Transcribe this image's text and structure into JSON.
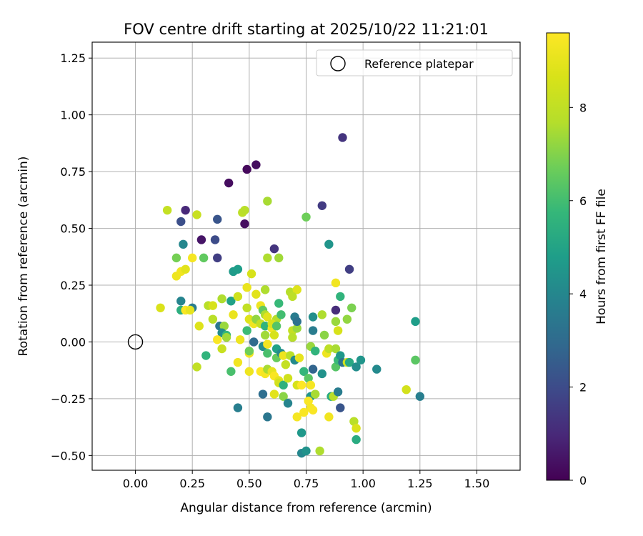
{
  "chart_data": {
    "type": "scatter",
    "title": "FOV centre drift starting at 2025/10/22 11:21:01",
    "xlabel": "Angular distance from reference (arcmin)",
    "ylabel": "Rotation from reference (arcmin)",
    "xlim": [
      -0.19,
      1.69
    ],
    "ylim": [
      -0.565,
      1.32
    ],
    "xticks": [
      0.0,
      0.25,
      0.5,
      0.75,
      1.0,
      1.25,
      1.5
    ],
    "xtick_labels": [
      "0.00",
      "0.25",
      "0.50",
      "0.75",
      "1.00",
      "1.25",
      "1.50"
    ],
    "yticks": [
      -0.5,
      -0.25,
      0.0,
      0.25,
      0.5,
      0.75,
      1.0,
      1.25
    ],
    "ytick_labels": [
      "−0.50",
      "−0.25",
      "0.00",
      "0.25",
      "0.50",
      "0.75",
      "1.00",
      "1.25"
    ],
    "grid": true,
    "legend": {
      "position": "top-right",
      "label": "Reference platepar"
    },
    "reference_point": {
      "x": 0.0,
      "y": 0.0
    },
    "colorbar": {
      "label": "Hours from first FF file",
      "colormap": "viridis",
      "range": [
        0,
        9.6
      ],
      "ticks": [
        0,
        2,
        4,
        6,
        8
      ],
      "tick_labels": [
        "0",
        "2",
        "4",
        "6",
        "8"
      ]
    },
    "points": [
      {
        "x": 0.91,
        "y": 0.9,
        "h": 1.3
      },
      {
        "x": 0.53,
        "y": 0.78,
        "h": 0.3
      },
      {
        "x": 0.49,
        "y": 0.76,
        "h": 0.2
      },
      {
        "x": 0.41,
        "y": 0.7,
        "h": 0.3
      },
      {
        "x": 0.82,
        "y": 0.6,
        "h": 1.5
      },
      {
        "x": 0.22,
        "y": 0.58,
        "h": 1.0
      },
      {
        "x": 0.36,
        "y": 0.54,
        "h": 2.3
      },
      {
        "x": 0.2,
        "y": 0.53,
        "h": 2.1
      },
      {
        "x": 0.48,
        "y": 0.52,
        "h": 0.3
      },
      {
        "x": 0.29,
        "y": 0.45,
        "h": 0.5
      },
      {
        "x": 0.35,
        "y": 0.45,
        "h": 2.0
      },
      {
        "x": 0.61,
        "y": 0.41,
        "h": 1.3
      },
      {
        "x": 0.36,
        "y": 0.37,
        "h": 1.6
      },
      {
        "x": 0.94,
        "y": 0.32,
        "h": 1.6
      },
      {
        "x": 0.88,
        "y": 0.14,
        "h": 1.1
      },
      {
        "x": 0.85,
        "y": 0.43,
        "h": 4.5
      },
      {
        "x": 0.21,
        "y": 0.43,
        "h": 4.0
      },
      {
        "x": 0.14,
        "y": 0.58,
        "h": 8.1
      },
      {
        "x": 0.27,
        "y": 0.56,
        "h": 8.2
      },
      {
        "x": 0.47,
        "y": 0.57,
        "h": 7.9
      },
      {
        "x": 0.48,
        "y": 0.58,
        "h": 7.8
      },
      {
        "x": 0.58,
        "y": 0.62,
        "h": 7.5
      },
      {
        "x": 0.75,
        "y": 0.55,
        "h": 6.7
      },
      {
        "x": 0.18,
        "y": 0.37,
        "h": 6.8
      },
      {
        "x": 0.3,
        "y": 0.37,
        "h": 6.5
      },
      {
        "x": 0.58,
        "y": 0.37,
        "h": 7.6
      },
      {
        "x": 0.63,
        "y": 0.37,
        "h": 7.4
      },
      {
        "x": 0.43,
        "y": 0.31,
        "h": 4.7
      },
      {
        "x": 0.45,
        "y": 0.32,
        "h": 4.8
      },
      {
        "x": 0.51,
        "y": 0.3,
        "h": 8.6
      },
      {
        "x": 0.18,
        "y": 0.29,
        "h": 9.2
      },
      {
        "x": 0.2,
        "y": 0.31,
        "h": 9.3
      },
      {
        "x": 0.22,
        "y": 0.32,
        "h": 8.9
      },
      {
        "x": 0.25,
        "y": 0.37,
        "h": 9.4
      },
      {
        "x": 0.57,
        "y": 0.23,
        "h": 7.6
      },
      {
        "x": 0.49,
        "y": 0.24,
        "h": 9.1
      },
      {
        "x": 0.53,
        "y": 0.21,
        "h": 8.9
      },
      {
        "x": 0.88,
        "y": 0.26,
        "h": 9.3
      },
      {
        "x": 0.68,
        "y": 0.22,
        "h": 7.7
      },
      {
        "x": 0.71,
        "y": 0.23,
        "h": 8.8
      },
      {
        "x": 0.69,
        "y": 0.2,
        "h": 7.9
      },
      {
        "x": 0.2,
        "y": 0.18,
        "h": 3.9
      },
      {
        "x": 0.2,
        "y": 0.14,
        "h": 5.4
      },
      {
        "x": 0.25,
        "y": 0.15,
        "h": 3.6
      },
      {
        "x": 0.22,
        "y": 0.14,
        "h": 9.5
      },
      {
        "x": 0.24,
        "y": 0.14,
        "h": 9.0
      },
      {
        "x": 0.11,
        "y": 0.15,
        "h": 8.7
      },
      {
        "x": 0.32,
        "y": 0.16,
        "h": 7.8
      },
      {
        "x": 0.34,
        "y": 0.16,
        "h": 8.6
      },
      {
        "x": 0.38,
        "y": 0.19,
        "h": 7.6
      },
      {
        "x": 0.42,
        "y": 0.18,
        "h": 4.9
      },
      {
        "x": 0.45,
        "y": 0.2,
        "h": 8.4
      },
      {
        "x": 0.43,
        "y": 0.12,
        "h": 9.1
      },
      {
        "x": 0.49,
        "y": 0.15,
        "h": 8.0
      },
      {
        "x": 0.55,
        "y": 0.16,
        "h": 9.2
      },
      {
        "x": 0.56,
        "y": 0.14,
        "h": 6.5
      },
      {
        "x": 0.63,
        "y": 0.17,
        "h": 5.8
      },
      {
        "x": 0.57,
        "y": 0.12,
        "h": 7.6
      },
      {
        "x": 0.58,
        "y": 0.11,
        "h": 8.9
      },
      {
        "x": 0.62,
        "y": 0.1,
        "h": 7.7
      },
      {
        "x": 0.64,
        "y": 0.12,
        "h": 6.0
      },
      {
        "x": 0.7,
        "y": 0.11,
        "h": 3.6
      },
      {
        "x": 0.78,
        "y": 0.11,
        "h": 4.3
      },
      {
        "x": 0.82,
        "y": 0.12,
        "h": 7.6
      },
      {
        "x": 0.9,
        "y": 0.2,
        "h": 5.6
      },
      {
        "x": 0.95,
        "y": 0.15,
        "h": 6.9
      },
      {
        "x": 0.93,
        "y": 0.1,
        "h": 7.2
      },
      {
        "x": 0.88,
        "y": 0.09,
        "h": 7.3
      },
      {
        "x": 0.34,
        "y": 0.1,
        "h": 7.8
      },
      {
        "x": 0.37,
        "y": 0.07,
        "h": 3.4
      },
      {
        "x": 0.39,
        "y": 0.07,
        "h": 7.3
      },
      {
        "x": 0.28,
        "y": 0.07,
        "h": 8.8
      },
      {
        "x": 0.38,
        "y": 0.04,
        "h": 4.2
      },
      {
        "x": 0.4,
        "y": 0.03,
        "h": 5.8
      },
      {
        "x": 0.36,
        "y": 0.01,
        "h": 9.5
      },
      {
        "x": 0.4,
        "y": 0.02,
        "h": 7.4
      },
      {
        "x": 0.46,
        "y": 0.01,
        "h": 9.2
      },
      {
        "x": 0.49,
        "y": 0.05,
        "h": 5.9
      },
      {
        "x": 0.5,
        "y": 0.1,
        "h": 8.8
      },
      {
        "x": 0.52,
        "y": 0.08,
        "h": 9.3
      },
      {
        "x": 0.53,
        "y": 0.1,
        "h": 7.2
      },
      {
        "x": 0.55,
        "y": 0.08,
        "h": 8.1
      },
      {
        "x": 0.52,
        "y": 0.0,
        "h": 3.0
      },
      {
        "x": 0.57,
        "y": 0.07,
        "h": 5.6
      },
      {
        "x": 0.57,
        "y": 0.03,
        "h": 7.4
      },
      {
        "x": 0.6,
        "y": 0.06,
        "h": 9.3
      },
      {
        "x": 0.6,
        "y": 0.08,
        "h": 8.7
      },
      {
        "x": 0.62,
        "y": 0.07,
        "h": 6.3
      },
      {
        "x": 0.61,
        "y": 0.03,
        "h": 8.6
      },
      {
        "x": 0.69,
        "y": 0.05,
        "h": 8.1
      },
      {
        "x": 0.71,
        "y": 0.06,
        "h": 7.3
      },
      {
        "x": 0.69,
        "y": 0.02,
        "h": 7.8
      },
      {
        "x": 0.71,
        "y": 0.09,
        "h": 3.2
      },
      {
        "x": 0.78,
        "y": 0.05,
        "h": 3.6
      },
      {
        "x": 0.83,
        "y": 0.03,
        "h": 7.1
      },
      {
        "x": 0.89,
        "y": 0.05,
        "h": 8.6
      },
      {
        "x": 0.31,
        "y": -0.06,
        "h": 5.6
      },
      {
        "x": 0.38,
        "y": -0.03,
        "h": 8.2
      },
      {
        "x": 0.5,
        "y": -0.05,
        "h": 9.3
      },
      {
        "x": 0.5,
        "y": -0.04,
        "h": 6.7
      },
      {
        "x": 0.56,
        "y": -0.02,
        "h": 4.2
      },
      {
        "x": 0.58,
        "y": -0.05,
        "h": 6.1
      },
      {
        "x": 0.58,
        "y": -0.01,
        "h": 9.3
      },
      {
        "x": 0.62,
        "y": -0.03,
        "h": 4.9
      },
      {
        "x": 0.62,
        "y": -0.07,
        "h": 6.6
      },
      {
        "x": 0.64,
        "y": -0.05,
        "h": 4.1
      },
      {
        "x": 0.65,
        "y": -0.06,
        "h": 9.2
      },
      {
        "x": 0.66,
        "y": -0.1,
        "h": 8.1
      },
      {
        "x": 0.68,
        "y": -0.06,
        "h": 7.8
      },
      {
        "x": 0.7,
        "y": -0.08,
        "h": 4.1
      },
      {
        "x": 0.72,
        "y": -0.07,
        "h": 9.0
      },
      {
        "x": 0.74,
        "y": -0.13,
        "h": 5.7
      },
      {
        "x": 0.77,
        "y": -0.02,
        "h": 7.3
      },
      {
        "x": 0.79,
        "y": -0.04,
        "h": 5.6
      },
      {
        "x": 0.78,
        "y": -0.12,
        "h": 2.8
      },
      {
        "x": 0.82,
        "y": -0.14,
        "h": 4.4
      },
      {
        "x": 0.84,
        "y": -0.05,
        "h": 9.2
      },
      {
        "x": 0.85,
        "y": -0.03,
        "h": 7.9
      },
      {
        "x": 0.88,
        "y": -0.03,
        "h": 7.5
      },
      {
        "x": 0.88,
        "y": -0.11,
        "h": 6.3
      },
      {
        "x": 0.89,
        "y": -0.08,
        "h": 5.8
      },
      {
        "x": 0.9,
        "y": -0.06,
        "h": 4.6
      },
      {
        "x": 0.91,
        "y": -0.09,
        "h": 3.3
      },
      {
        "x": 0.93,
        "y": -0.09,
        "h": 8.4
      },
      {
        "x": 0.94,
        "y": -0.09,
        "h": 5.2
      },
      {
        "x": 0.97,
        "y": -0.11,
        "h": 4.2
      },
      {
        "x": 0.99,
        "y": -0.08,
        "h": 4.5
      },
      {
        "x": 1.06,
        "y": -0.12,
        "h": 4.1
      },
      {
        "x": 0.27,
        "y": -0.11,
        "h": 8.0
      },
      {
        "x": 0.42,
        "y": -0.13,
        "h": 6.1
      },
      {
        "x": 0.45,
        "y": -0.09,
        "h": 9.3
      },
      {
        "x": 0.5,
        "y": -0.13,
        "h": 9.2
      },
      {
        "x": 0.55,
        "y": -0.13,
        "h": 9.6
      },
      {
        "x": 0.57,
        "y": -0.14,
        "h": 9.4
      },
      {
        "x": 0.58,
        "y": -0.12,
        "h": 7.5
      },
      {
        "x": 0.6,
        "y": -0.13,
        "h": 9.0
      },
      {
        "x": 0.61,
        "y": -0.15,
        "h": 9.5
      },
      {
        "x": 0.63,
        "y": -0.17,
        "h": 9.0
      },
      {
        "x": 0.63,
        "y": -0.18,
        "h": 8.5
      },
      {
        "x": 0.65,
        "y": -0.19,
        "h": 5.5
      },
      {
        "x": 0.67,
        "y": -0.16,
        "h": 8.4
      },
      {
        "x": 0.71,
        "y": -0.19,
        "h": 8.6
      },
      {
        "x": 0.73,
        "y": -0.19,
        "h": 9.6
      },
      {
        "x": 0.76,
        "y": -0.16,
        "h": 6.4
      },
      {
        "x": 0.77,
        "y": -0.19,
        "h": 9.4
      },
      {
        "x": 0.77,
        "y": -0.24,
        "h": 4.5
      },
      {
        "x": 0.76,
        "y": -0.26,
        "h": 9.5
      },
      {
        "x": 0.79,
        "y": -0.23,
        "h": 7.5
      },
      {
        "x": 0.86,
        "y": -0.24,
        "h": 5.3
      },
      {
        "x": 0.87,
        "y": -0.24,
        "h": 7.8
      },
      {
        "x": 0.89,
        "y": -0.22,
        "h": 3.6
      },
      {
        "x": 0.56,
        "y": -0.23,
        "h": 3.1
      },
      {
        "x": 0.61,
        "y": -0.23,
        "h": 8.9
      },
      {
        "x": 0.65,
        "y": -0.24,
        "h": 7.1
      },
      {
        "x": 0.67,
        "y": -0.27,
        "h": 3.9
      },
      {
        "x": 0.74,
        "y": -0.31,
        "h": 9.5
      },
      {
        "x": 0.71,
        "y": -0.33,
        "h": 9.4
      },
      {
        "x": 0.77,
        "y": -0.29,
        "h": 9.4
      },
      {
        "x": 0.78,
        "y": -0.3,
        "h": 9.5
      },
      {
        "x": 0.85,
        "y": -0.33,
        "h": 9.3
      },
      {
        "x": 0.9,
        "y": -0.29,
        "h": 2.3
      },
      {
        "x": 0.45,
        "y": -0.29,
        "h": 3.7
      },
      {
        "x": 0.58,
        "y": -0.33,
        "h": 3.4
      },
      {
        "x": 0.96,
        "y": -0.35,
        "h": 7.8
      },
      {
        "x": 0.97,
        "y": -0.38,
        "h": 8.7
      },
      {
        "x": 0.97,
        "y": -0.43,
        "h": 5.3
      },
      {
        "x": 0.73,
        "y": -0.4,
        "h": 4.6
      },
      {
        "x": 0.73,
        "y": -0.49,
        "h": 4.0
      },
      {
        "x": 0.75,
        "y": -0.48,
        "h": 4.4
      },
      {
        "x": 0.81,
        "y": -0.48,
        "h": 7.6
      },
      {
        "x": 1.19,
        "y": -0.21,
        "h": 8.5
      },
      {
        "x": 1.23,
        "y": -0.08,
        "h": 6.4
      },
      {
        "x": 1.23,
        "y": 0.09,
        "h": 4.8
      },
      {
        "x": 1.25,
        "y": -0.24,
        "h": 3.7
      }
    ]
  }
}
